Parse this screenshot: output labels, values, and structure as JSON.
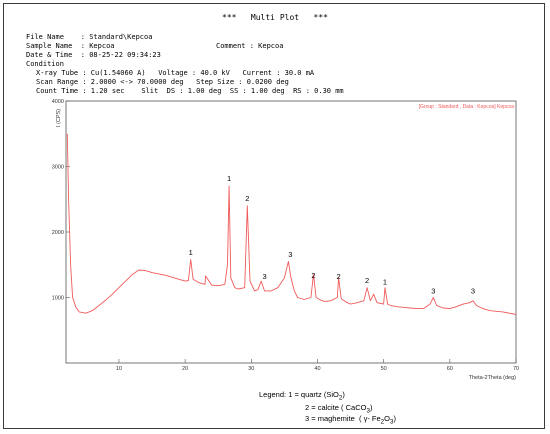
{
  "title": "***   Multi Plot   ***",
  "header": {
    "file_name": "File Name    : Standard\\Kepcoa",
    "sample_name": "Sample Name  : Kepcoa",
    "comment": "Comment : Kepcoa",
    "date_time": "Date & Time  : 08-25-22 09:34:23",
    "condition": "Condition",
    "xray_tube": "X-ray Tube : Cu(1.54060 A)   Voltage : 40.0 kV   Current : 30.0 mA",
    "scan_range": "Scan Range : 2.0000 <-> 70.0000 deg   Step Size : 0.0200 deg",
    "count_time": "Count Time : 1.20 sec    Slit  DS : 1.00 deg  SS : 1.00 deg  RS : 0.30 mm"
  },
  "legend": {
    "line0": "Legend: 1 = quartz (SiO",
    "line0_sub": "2",
    "line0_end": ")",
    "line1": "2 = calcite ( CaCO",
    "line1_sub": "3",
    "line1_end": ")",
    "line2": "3 = maghemite  ( γ- Fe",
    "line2_sub1": "2",
    "line2_mid": "O",
    "line2_sub2": "3",
    "line2_end": ")"
  },
  "chart_data": {
    "type": "line",
    "ylabel": "I (CPS)",
    "xlabel": "Theta-2Theta (deg)",
    "series_label": "[Group : Standard , Data : Kepcoa] Kepcoa",
    "xlim": [
      2,
      70
    ],
    "ylim": [
      0,
      4000
    ],
    "x_ticks": [
      10,
      20,
      30,
      40,
      50,
      60,
      70
    ],
    "y_ticks": [
      1000,
      2000,
      3000,
      4000
    ],
    "line_color": "#f05a5a",
    "grid": false,
    "series": [
      {
        "x": [
          2.2,
          2.4,
          2.7,
          3.0,
          3.5,
          4,
          5,
          6,
          7,
          8,
          9,
          10,
          11,
          12,
          13,
          14,
          15,
          16,
          17,
          18,
          19,
          20,
          20.5,
          20.85,
          21.2,
          22,
          23,
          23.1,
          24,
          25,
          26,
          26.4,
          26.65,
          26.9,
          27.5,
          28,
          29,
          29.4,
          29.8,
          30.5,
          31,
          31.5,
          32,
          33,
          34,
          35,
          35.6,
          36,
          36.5,
          37,
          38,
          39,
          39.4,
          39.8,
          40.5,
          41,
          42,
          43,
          43.2,
          43.6,
          44.5,
          45,
          46,
          47,
          47.5,
          48,
          48.5,
          49,
          50,
          50.2,
          50.6,
          51,
          52,
          53,
          54,
          55,
          56,
          57,
          57.5,
          58,
          59,
          60,
          61,
          62,
          63,
          63.5,
          64,
          65,
          66,
          67,
          68,
          69,
          70
        ],
        "y": [
          3500,
          2500,
          1500,
          1000,
          850,
          780,
          760,
          800,
          880,
          960,
          1050,
          1150,
          1250,
          1350,
          1420,
          1410,
          1380,
          1360,
          1340,
          1310,
          1280,
          1250,
          1260,
          1580,
          1280,
          1230,
          1200,
          1330,
          1190,
          1180,
          1200,
          1500,
          2700,
          1300,
          1150,
          1130,
          1150,
          2400,
          1250,
          1100,
          1120,
          1250,
          1100,
          1100,
          1150,
          1300,
          1550,
          1300,
          1100,
          1000,
          970,
          1000,
          1350,
          1000,
          960,
          940,
          950,
          1000,
          1300,
          980,
          920,
          900,
          920,
          950,
          1150,
          950,
          1050,
          920,
          900,
          1150,
          900,
          880,
          860,
          850,
          840,
          830,
          830,
          900,
          1000,
          880,
          840,
          830,
          860,
          900,
          920,
          950,
          880,
          830,
          800,
          790,
          780,
          760,
          740
        ]
      }
    ],
    "annotations": [
      {
        "label": "1",
        "x": 20.85,
        "y": 1650
      },
      {
        "label": "1",
        "x": 26.65,
        "y": 2780
      },
      {
        "label": "2",
        "x": 29.4,
        "y": 2470
      },
      {
        "label": "3",
        "x": 32.0,
        "y": 1280
      },
      {
        "label": "3",
        "x": 35.9,
        "y": 1620
      },
      {
        "label": "2",
        "x": 39.4,
        "y": 1300
      },
      {
        "label": "2",
        "x": 43.2,
        "y": 1280
      },
      {
        "label": "2",
        "x": 47.5,
        "y": 1220
      },
      {
        "label": "1",
        "x": 50.2,
        "y": 1200
      },
      {
        "label": "3",
        "x": 57.5,
        "y": 1060
      },
      {
        "label": "3",
        "x": 63.5,
        "y": 1060
      }
    ]
  }
}
